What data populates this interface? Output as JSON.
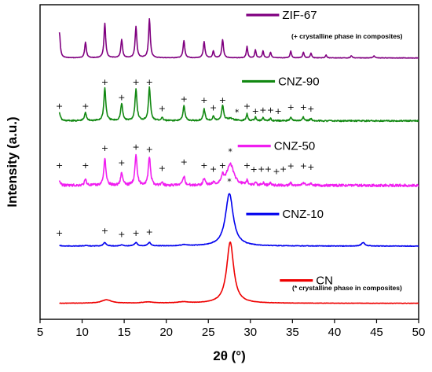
{
  "chart_data": {
    "type": "line",
    "xlabel": "2θ (°)",
    "ylabel": "Intensity (a.u.)",
    "xlim": [
      5,
      50
    ],
    "x_ticks": [
      5,
      10,
      15,
      20,
      25,
      30,
      35,
      40,
      45,
      50
    ],
    "y_ticks": "none",
    "grid": false,
    "legend_placement": "inline-right",
    "notes": {
      "zif": "(+ crystalline phase in composites)",
      "cn": "(* crystalline phase in composites)"
    },
    "series": [
      {
        "name": "ZIF-67",
        "color": "#800080",
        "baseline": 0.93,
        "noise": 0.004,
        "peaks": [
          [
            7.3,
            0.45,
            0.12
          ],
          [
            10.4,
            0.27,
            0.12
          ],
          [
            12.7,
            0.6,
            0.12
          ],
          [
            14.7,
            0.32,
            0.12
          ],
          [
            16.4,
            0.55,
            0.12
          ],
          [
            18.0,
            0.68,
            0.12
          ],
          [
            22.1,
            0.3,
            0.12
          ],
          [
            24.5,
            0.28,
            0.12
          ],
          [
            25.6,
            0.12,
            0.1
          ],
          [
            26.7,
            0.32,
            0.12
          ],
          [
            29.6,
            0.2,
            0.1
          ],
          [
            30.6,
            0.14,
            0.1
          ],
          [
            31.5,
            0.12,
            0.1
          ],
          [
            32.4,
            0.1,
            0.1
          ],
          [
            34.8,
            0.12,
            0.1
          ],
          [
            36.3,
            0.1,
            0.1
          ],
          [
            37.2,
            0.08,
            0.1
          ],
          [
            39.0,
            0.05,
            0.1
          ],
          [
            42.0,
            0.04,
            0.1
          ],
          [
            44.7,
            0.04,
            0.1
          ]
        ]
      },
      {
        "name": "CNZ-90",
        "color": "#118811",
        "baseline": 2.03,
        "noise": 0.012,
        "peaks": [
          [
            7.3,
            0.14,
            0.14
          ],
          [
            10.4,
            0.14,
            0.14
          ],
          [
            12.7,
            0.57,
            0.14
          ],
          [
            14.7,
            0.3,
            0.14
          ],
          [
            16.4,
            0.55,
            0.14
          ],
          [
            18.0,
            0.58,
            0.14
          ],
          [
            19.5,
            0.05,
            0.14
          ],
          [
            22.1,
            0.26,
            0.14
          ],
          [
            24.5,
            0.2,
            0.14
          ],
          [
            25.6,
            0.08,
            0.12
          ],
          [
            26.7,
            0.27,
            0.14
          ],
          [
            27.6,
            0.04,
            0.5
          ],
          [
            29.6,
            0.12,
            0.12
          ],
          [
            30.6,
            0.06,
            0.12
          ],
          [
            31.5,
            0.05,
            0.12
          ],
          [
            32.4,
            0.04,
            0.12
          ],
          [
            34.8,
            0.07,
            0.12
          ],
          [
            36.3,
            0.06,
            0.12
          ],
          [
            37.2,
            0.04,
            0.12
          ]
        ]
      },
      {
        "name": "CNZ-50",
        "color": "#f01ef0",
        "baseline": 3.16,
        "noise": 0.022,
        "peaks": [
          [
            7.3,
            0.08,
            0.15
          ],
          [
            10.4,
            0.1,
            0.15
          ],
          [
            12.7,
            0.47,
            0.15
          ],
          [
            14.7,
            0.22,
            0.15
          ],
          [
            16.4,
            0.55,
            0.15
          ],
          [
            18.0,
            0.5,
            0.15
          ],
          [
            19.5,
            0.04,
            0.15
          ],
          [
            22.1,
            0.16,
            0.15
          ],
          [
            24.5,
            0.12,
            0.15
          ],
          [
            25.6,
            0.05,
            0.12
          ],
          [
            26.7,
            0.15,
            0.15
          ],
          [
            27.6,
            0.38,
            0.5
          ],
          [
            29.6,
            0.07,
            0.12
          ],
          [
            30.6,
            0.05,
            0.12
          ],
          [
            31.5,
            0.04,
            0.12
          ],
          [
            32.4,
            0.04,
            0.12
          ],
          [
            34.8,
            0.04,
            0.12
          ],
          [
            36.3,
            0.05,
            0.12
          ],
          [
            37.2,
            0.04,
            0.12
          ]
        ]
      },
      {
        "name": "CNZ-10",
        "color": "#0000ee",
        "baseline": 4.22,
        "noise": 0.005,
        "peaks": [
          [
            7.3,
            0.01,
            0.2
          ],
          [
            10.4,
            0.01,
            0.2
          ],
          [
            12.7,
            0.06,
            0.2
          ],
          [
            14.7,
            0.02,
            0.2
          ],
          [
            16.4,
            0.06,
            0.2
          ],
          [
            18.0,
            0.06,
            0.2
          ],
          [
            22.1,
            0.02,
            0.4
          ],
          [
            27.5,
            0.92,
            0.55
          ],
          [
            43.4,
            0.06,
            0.25
          ]
        ]
      },
      {
        "name": "CN",
        "color": "#ee0000",
        "baseline": 5.22,
        "noise": 0.003,
        "peaks": [
          [
            12.9,
            0.06,
            0.7
          ],
          [
            17.8,
            0.02,
            0.8
          ],
          [
            22.0,
            0.02,
            0.8
          ],
          [
            27.6,
            1.07,
            0.5
          ]
        ]
      }
    ],
    "markers": [
      {
        "symbol": "+",
        "x": [
          7.3,
          10.4,
          12.7,
          14.7,
          16.4,
          18.0,
          19.5,
          22.1,
          24.5,
          25.6,
          26.7,
          29.6,
          30.6,
          31.5,
          32.4,
          33.3,
          34.8,
          36.3,
          37.2
        ],
        "y": [
          1.82,
          1.82,
          1.4,
          1.67,
          1.4,
          1.4,
          1.86,
          1.7,
          1.72,
          1.85,
          1.72,
          1.82,
          1.91,
          1.89,
          1.89,
          1.91,
          1.84,
          1.84,
          1.87
        ]
      },
      {
        "symbol": "*",
        "x": [
          28.4
        ],
        "y": [
          1.93
        ]
      },
      {
        "symbol": "+",
        "x": [
          7.3,
          10.4,
          12.7,
          14.7,
          16.4,
          18.0,
          19.5,
          22.1,
          24.5,
          25.6,
          26.7,
          29.6,
          30.4,
          31.3,
          32.1,
          33.1,
          33.9,
          34.8,
          36.3,
          37.2
        ],
        "y": [
          2.86,
          2.86,
          2.56,
          2.81,
          2.54,
          2.58,
          2.91,
          2.8,
          2.86,
          2.92,
          2.86,
          2.86,
          2.93,
          2.92,
          2.92,
          2.96,
          2.92,
          2.87,
          2.87,
          2.89
        ]
      },
      {
        "symbol": "*",
        "x": [
          27.6
        ],
        "y": [
          2.62
        ]
      },
      {
        "symbol": "*",
        "x": [
          27.5
        ],
        "y": [
          3.14
        ]
      },
      {
        "symbol": "+",
        "x": [
          7.3,
          12.7,
          14.7,
          16.4,
          18.0
        ],
        "y": [
          4.04,
          4.0,
          4.06,
          4.04,
          4.02
        ]
      }
    ],
    "legend_labels": [
      {
        "series": 0,
        "x": 29.5,
        "y": 0.18
      },
      {
        "series": 1,
        "x": 29.0,
        "y": 1.34
      },
      {
        "series": 2,
        "x": 28.5,
        "y": 2.47
      },
      {
        "series": 3,
        "x": 29.5,
        "y": 3.66
      },
      {
        "series": 4,
        "x": 33.5,
        "y": 4.82
      }
    ]
  }
}
